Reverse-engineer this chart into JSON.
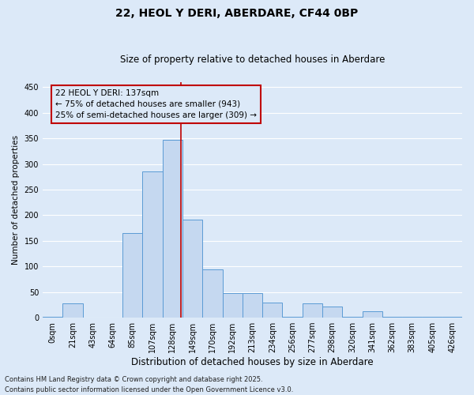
{
  "title": "22, HEOL Y DERI, ABERDARE, CF44 0BP",
  "subtitle": "Size of property relative to detached houses in Aberdare",
  "xlabel": "Distribution of detached houses by size in Aberdare",
  "ylabel": "Number of detached properties",
  "bar_labels": [
    "0sqm",
    "21sqm",
    "43sqm",
    "64sqm",
    "85sqm",
    "107sqm",
    "128sqm",
    "149sqm",
    "170sqm",
    "192sqm",
    "213sqm",
    "234sqm",
    "256sqm",
    "277sqm",
    "298sqm",
    "320sqm",
    "341sqm",
    "362sqm",
    "383sqm",
    "405sqm",
    "426sqm"
  ],
  "bar_values": [
    2,
    28,
    0,
    0,
    165,
    285,
    348,
    192,
    95,
    48,
    48,
    30,
    2,
    28,
    22,
    2,
    12,
    2,
    2,
    2,
    2
  ],
  "bar_color": "#c5d8f0",
  "bar_edge_color": "#5b9bd5",
  "vline_color": "#c00000",
  "ylim": [
    0,
    460
  ],
  "yticks": [
    0,
    50,
    100,
    150,
    200,
    250,
    300,
    350,
    400,
    450
  ],
  "annotation_text": "22 HEOL Y DERI: 137sqm\n← 75% of detached houses are smaller (943)\n25% of semi-detached houses are larger (309) →",
  "annotation_box_color": "#c00000",
  "footer_text": "Contains HM Land Registry data © Crown copyright and database right 2025.\nContains public sector information licensed under the Open Government Licence v3.0.",
  "background_color": "#dce9f8",
  "grid_color": "#ffffff",
  "title_fontsize": 10,
  "subtitle_fontsize": 8.5,
  "xlabel_fontsize": 8.5,
  "ylabel_fontsize": 7.5,
  "tick_fontsize": 7,
  "annotation_fontsize": 7.5,
  "footer_fontsize": 6
}
